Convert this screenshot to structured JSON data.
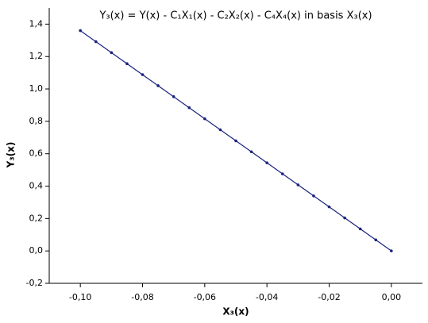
{
  "chart_data": {
    "type": "line",
    "title": "Y₃(x) = Y(x) - C₁X₁(x) - C₂X₂(x) - C₄X₄(x) in basis X₃(x)",
    "x_label": "X₃(x)",
    "y_label": "Y₃(x)",
    "x": [
      -0.1,
      -0.095,
      -0.09,
      -0.085,
      -0.08,
      -0.075,
      -0.07,
      -0.065,
      -0.06,
      -0.055,
      -0.05,
      -0.045,
      -0.04,
      -0.035,
      -0.03,
      -0.025,
      -0.02,
      -0.015,
      -0.01,
      -0.005,
      0.0
    ],
    "values": [
      1.36,
      1.292,
      1.224,
      1.156,
      1.088,
      1.02,
      0.952,
      0.884,
      0.816,
      0.748,
      0.68,
      0.612,
      0.544,
      0.476,
      0.408,
      0.34,
      0.272,
      0.204,
      0.136,
      0.068,
      0.0
    ],
    "color": "#1a237e",
    "xlim": [
      -0.11,
      0.01
    ],
    "xticks": [
      {
        "value": -0.1,
        "label": "-0,10"
      },
      {
        "value": -0.08,
        "label": "-0,08"
      },
      {
        "value": -0.06,
        "label": "-0,06"
      },
      {
        "value": -0.04,
        "label": "-0,04"
      },
      {
        "value": -0.02,
        "label": "-0,02"
      },
      {
        "value": 0,
        "label": "0,00"
      }
    ],
    "ylim": [
      -0.2,
      1.5
    ],
    "yticks": [
      {
        "value": -0.2,
        "label": "-0,2"
      },
      {
        "value": 0,
        "label": "0,0"
      },
      {
        "value": 0.2,
        "label": "0,2"
      },
      {
        "value": 0.4,
        "label": "0,4"
      },
      {
        "value": 0.6,
        "label": "0,6"
      },
      {
        "value": 0.8,
        "label": "0,8"
      },
      {
        "value": 1.0,
        "label": "1,0"
      },
      {
        "value": 1.2,
        "label": "1,2"
      },
      {
        "value": 1.4,
        "label": "1,4"
      }
    ]
  }
}
